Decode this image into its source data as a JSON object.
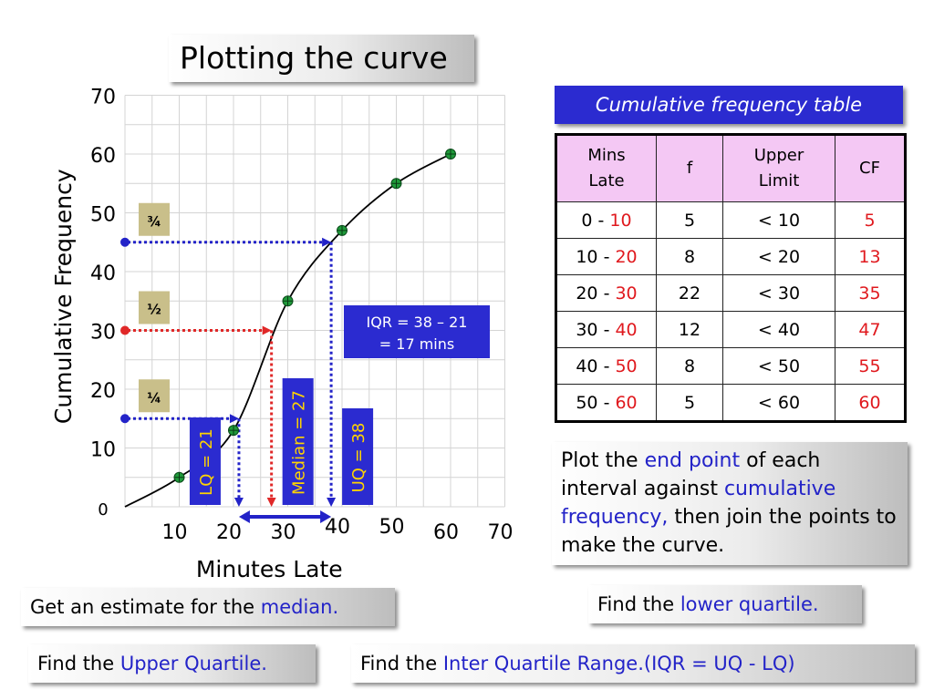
{
  "title": "Plotting the curve",
  "table": {
    "title": "Cumulative frequency table",
    "headers": {
      "mins_line1": "Mins",
      "mins_line2": "Late",
      "f": "f",
      "upper_line1": "Upper",
      "upper_line2": "Limit",
      "cf": "CF"
    },
    "rows": [
      {
        "start": "0",
        "end": "10",
        "f": "5",
        "upper": "< 10",
        "cf": "5"
      },
      {
        "start": "10",
        "end": "20",
        "f": "8",
        "upper": "< 20",
        "cf": "13"
      },
      {
        "start": "20",
        "end": "30",
        "f": "22",
        "upper": "< 30",
        "cf": "35"
      },
      {
        "start": "30",
        "end": "40",
        "f": "12",
        "upper": "< 40",
        "cf": "47"
      },
      {
        "start": "40",
        "end": "50",
        "f": "8",
        "upper": "< 50",
        "cf": "55"
      },
      {
        "start": "50",
        "end": "60",
        "f": "5",
        "upper": "< 60",
        "cf": "60"
      }
    ]
  },
  "instructions": {
    "plot": {
      "p1": "Plot the ",
      "h1": "end point",
      "p2": " of each interval against ",
      "h2": "cumulative frequency,",
      "p3": " then join the points to make the curve."
    },
    "median": {
      "prefix": "Get an estimate for the ",
      "highlight": "median."
    },
    "lq": {
      "prefix": "Find the ",
      "highlight": "lower quartile."
    },
    "uq": {
      "prefix": "Find the ",
      "highlight": "Upper Quartile."
    },
    "iqr": {
      "prefix": "Find the ",
      "highlight": "Inter Quartile Range.(IQR = UQ - LQ)"
    }
  },
  "chart_data": {
    "type": "line",
    "xlabel": "Minutes Late",
    "ylabel": "Cumulative Frequency",
    "x_ticks": [
      "10",
      "20",
      "30",
      "40",
      "50",
      "60",
      "70"
    ],
    "y_ticks": [
      "0",
      "10",
      "20",
      "30",
      "40",
      "50",
      "60",
      "70"
    ],
    "xlim": [
      0,
      70
    ],
    "ylim": [
      0,
      70
    ],
    "grid": true,
    "points": [
      {
        "x": 10,
        "y": 5
      },
      {
        "x": 20,
        "y": 13
      },
      {
        "x": 30,
        "y": 35
      },
      {
        "x": 40,
        "y": 47
      },
      {
        "x": 50,
        "y": 55
      },
      {
        "x": 60,
        "y": 60
      }
    ],
    "quartiles": [
      {
        "id": "lq",
        "fraction": "¼",
        "y": 15,
        "x": 21,
        "label": "LQ = 21",
        "color": "#2323c8"
      },
      {
        "id": "median",
        "fraction": "½",
        "y": 30,
        "x": 27,
        "label": "Median = 27",
        "color": "#e02828"
      },
      {
        "id": "uq",
        "fraction": "¾",
        "y": 45,
        "x": 38,
        "label": "UQ = 38",
        "color": "#2323c8"
      }
    ],
    "iqr_label": {
      "line1": "IQR  = 38 – 21",
      "line2": "= 17 mins"
    },
    "colors": {
      "curve": "#000000",
      "point": "#1f9a3a",
      "label_box": "#2b2bd0",
      "label_text": "#ffd400",
      "fraction_box": "#c9bf8a"
    }
  }
}
